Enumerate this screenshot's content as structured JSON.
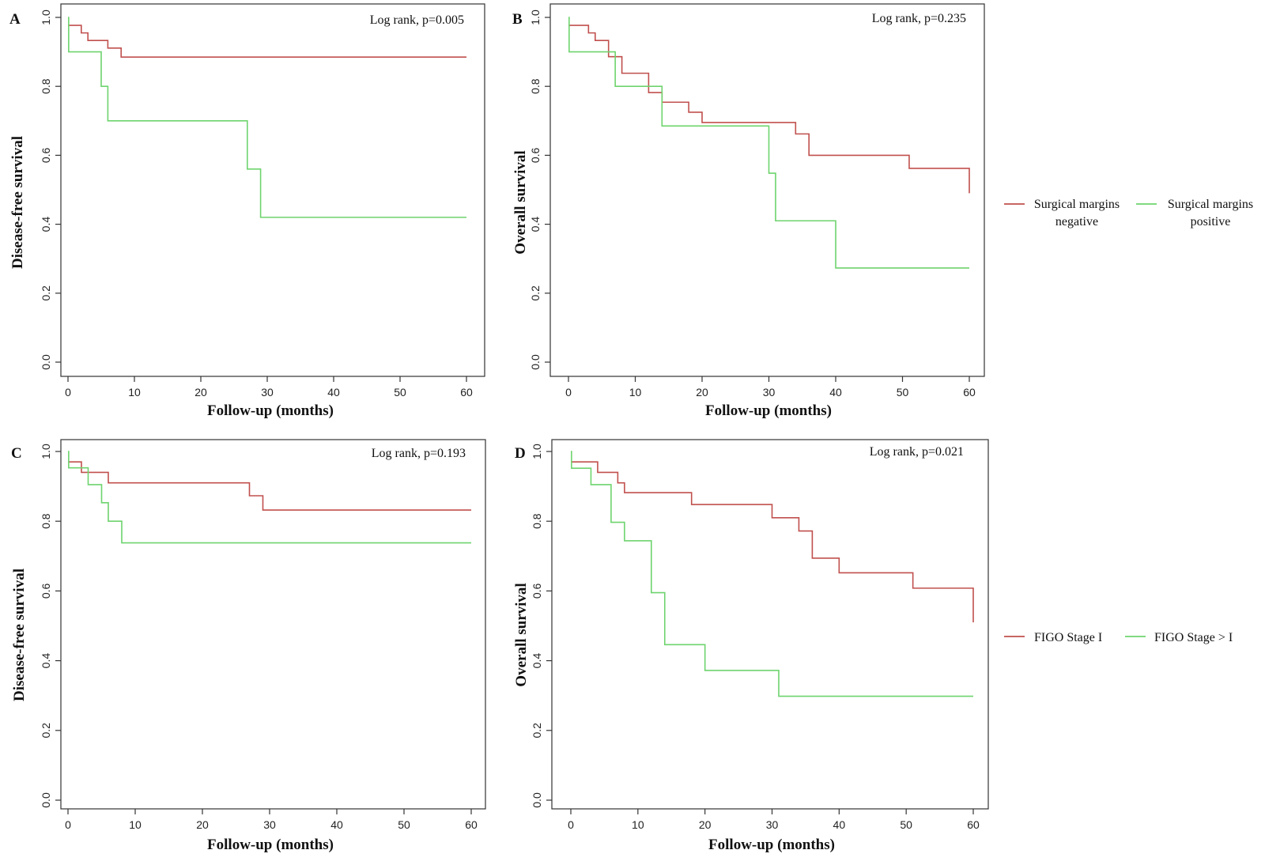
{
  "colors": {
    "red": "#c0504d",
    "green": "#6ed46e",
    "axis": "#333333"
  },
  "legends": [
    {
      "group": "top",
      "entries": [
        {
          "lines": [
            "Surgical margins",
            "negative"
          ],
          "color": "#c0504d"
        },
        {
          "lines": [
            "Surgical margins",
            "positive"
          ],
          "color": "#6ed46e"
        }
      ]
    },
    {
      "group": "bottom",
      "entries": [
        {
          "lines": [
            "FIGO Stage I"
          ],
          "color": "#c0504d"
        },
        {
          "lines": [
            "FIGO Stage > I"
          ],
          "color": "#6ed46e"
        }
      ]
    }
  ],
  "chart_data": [
    {
      "type": "line",
      "panel": "A",
      "annotation": "Log rank, p=0.005",
      "xlabel": "Follow-up (months)",
      "ylabel": "Disease-free survival",
      "xlim": [
        0,
        60
      ],
      "ylim": [
        0,
        1
      ],
      "xticks": [
        "0",
        "10",
        "20",
        "30",
        "40",
        "50",
        "60"
      ],
      "yticks": [
        "0.0",
        "0.2",
        "0.4",
        "0.6",
        "0.8",
        "1.0"
      ],
      "series": [
        {
          "color": "#c0504d",
          "x": [
            0,
            2,
            3,
            6,
            8,
            60
          ],
          "y": [
            0.977,
            0.955,
            0.933,
            0.911,
            0.885,
            0.885
          ]
        },
        {
          "color": "#6ed46e",
          "x": [
            0,
            0.1,
            5,
            6,
            27,
            29,
            60
          ],
          "y": [
            1.0,
            0.9,
            0.8,
            0.7,
            0.56,
            0.42,
            0.42
          ]
        }
      ]
    },
    {
      "type": "line",
      "panel": "B",
      "annotation": "Log rank, p=0.235",
      "xlabel": "Follow-up (months)",
      "ylabel": "Overall survival",
      "xlim": [
        0,
        60
      ],
      "ylim": [
        0,
        1
      ],
      "xticks": [
        "0",
        "10",
        "20",
        "30",
        "40",
        "50",
        "60"
      ],
      "yticks": [
        "0.0",
        "0.2",
        "0.4",
        "0.6",
        "0.8",
        "1.0"
      ],
      "series": [
        {
          "color": "#c0504d",
          "x": [
            0,
            3,
            4,
            6,
            8,
            12,
            14,
            18,
            20,
            34,
            36,
            51,
            60,
            60
          ],
          "y": [
            0.977,
            0.955,
            0.933,
            0.886,
            0.838,
            0.782,
            0.754,
            0.725,
            0.695,
            0.662,
            0.6,
            0.562,
            0.562,
            0.49
          ]
        },
        {
          "color": "#6ed46e",
          "x": [
            0,
            0.1,
            7,
            14,
            30,
            31,
            40,
            60
          ],
          "y": [
            1.0,
            0.9,
            0.8,
            0.685,
            0.548,
            0.41,
            0.273,
            0.273
          ]
        }
      ]
    },
    {
      "type": "line",
      "panel": "C",
      "annotation": "Log rank, p=0.193",
      "xlabel": "Follow-up (months)",
      "ylabel": "Disease-free survival",
      "xlim": [
        0,
        60
      ],
      "ylim": [
        0,
        1
      ],
      "xticks": [
        "0",
        "10",
        "20",
        "30",
        "40",
        "50",
        "60"
      ],
      "yticks": [
        "0.0",
        "0.2",
        "0.4",
        "0.6",
        "0.8",
        "1.0"
      ],
      "series": [
        {
          "color": "#c0504d",
          "x": [
            0,
            2,
            6,
            27,
            29,
            60
          ],
          "y": [
            0.97,
            0.94,
            0.91,
            0.873,
            0.832,
            0.832
          ]
        },
        {
          "color": "#6ed46e",
          "x": [
            0,
            0.1,
            3,
            5,
            6,
            8,
            60
          ],
          "y": [
            1.0,
            0.953,
            0.905,
            0.853,
            0.8,
            0.738,
            0.738
          ]
        }
      ]
    },
    {
      "type": "line",
      "panel": "D",
      "annotation": "Log rank, p=0.021",
      "xlabel": "Follow-up (months)",
      "ylabel": "Overall survival",
      "xlim": [
        0,
        60
      ],
      "ylim": [
        0,
        1
      ],
      "xticks": [
        "0",
        "10",
        "20",
        "30",
        "40",
        "50",
        "60"
      ],
      "yticks": [
        "0.0",
        "0.2",
        "0.4",
        "0.6",
        "0.8",
        "1.0"
      ],
      "series": [
        {
          "color": "#c0504d",
          "x": [
            0,
            4,
            7,
            8,
            18,
            30,
            34,
            36,
            40,
            51,
            60,
            60
          ],
          "y": [
            0.97,
            0.94,
            0.91,
            0.882,
            0.848,
            0.81,
            0.772,
            0.694,
            0.652,
            0.608,
            0.608,
            0.51
          ]
        },
        {
          "color": "#6ed46e",
          "x": [
            0,
            0.1,
            3,
            6,
            8,
            12,
            14,
            20,
            31,
            60
          ],
          "y": [
            1.0,
            0.952,
            0.905,
            0.797,
            0.744,
            0.595,
            0.446,
            0.372,
            0.298,
            0.298
          ]
        }
      ]
    }
  ]
}
